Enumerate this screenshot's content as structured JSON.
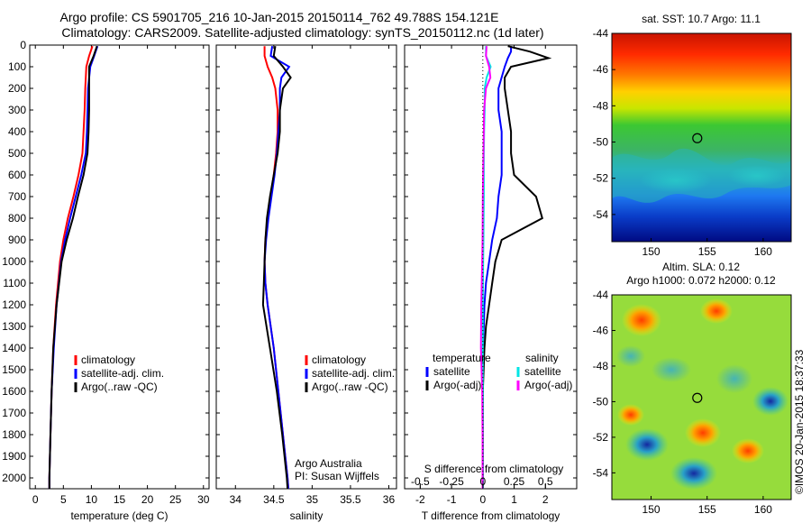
{
  "header": {
    "line1": "Argo profile: CS 5901705_216 10-Jan-2015 20150114_762 49.788S 154.121E",
    "line2": "Climatology: CARS2009. Satellite-adjusted climatology: synTS_20150112.nc (1d later)"
  },
  "colors": {
    "climatology": "#ff0000",
    "satellite": "#0000ff",
    "argo": "#000000",
    "satellite_salinity": "#00e5e5",
    "argo_salinity": "#ff00ff"
  },
  "chart_data": [
    {
      "type": "line",
      "name": "temperature-profile",
      "xlabel": "temperature (deg C)",
      "xlim": [
        -1,
        31
      ],
      "xticks": [
        0,
        5,
        10,
        15,
        20,
        25,
        30
      ],
      "ylim": [
        0,
        2050
      ],
      "yticks": [
        0,
        100,
        200,
        300,
        400,
        500,
        600,
        700,
        800,
        900,
        1000,
        1100,
        1200,
        1300,
        1400,
        1500,
        1600,
        1700,
        1800,
        1900,
        2000
      ],
      "legend": [
        "climatology",
        "satellite-adj. clim.",
        "Argo(..raw -QC)"
      ],
      "series": [
        {
          "name": "climatology",
          "color": "#ff0000",
          "depth": [
            5,
            50,
            100,
            200,
            300,
            400,
            500,
            600,
            700,
            800,
            900,
            1000,
            1200,
            1400,
            1600,
            1800,
            2000,
            2050
          ],
          "values": [
            10.2,
            9.6,
            9.1,
            8.9,
            8.8,
            8.6,
            8.4,
            7.7,
            6.8,
            5.8,
            5.0,
            4.4,
            3.7,
            3.2,
            2.9,
            2.7,
            2.5,
            2.5
          ]
        },
        {
          "name": "satellite-adj. clim.",
          "color": "#0000ff",
          "depth": [
            5,
            50,
            100,
            200,
            300,
            400,
            500,
            600,
            700,
            800,
            900,
            1000,
            1200,
            1400,
            1600,
            1800,
            2000,
            2050
          ],
          "values": [
            11.1,
            10.5,
            9.8,
            9.4,
            9.3,
            9.2,
            9.0,
            8.2,
            7.2,
            6.2,
            5.3,
            4.6,
            3.8,
            3.3,
            2.9,
            2.7,
            2.5,
            2.5
          ]
        },
        {
          "name": "Argo(..raw -QC)",
          "color": "#000000",
          "depth": [
            5,
            50,
            100,
            200,
            300,
            400,
            500,
            600,
            700,
            800,
            900,
            1000,
            1200,
            1400,
            1600,
            1800,
            2000,
            2050
          ],
          "values": [
            11.0,
            10.4,
            9.6,
            9.6,
            9.6,
            9.5,
            9.3,
            8.6,
            7.6,
            6.7,
            5.6,
            4.7,
            3.8,
            3.2,
            2.9,
            2.7,
            2.5,
            2.5
          ]
        }
      ]
    },
    {
      "type": "line",
      "name": "salinity-profile",
      "xlabel": "salinity",
      "xlim": [
        33.75,
        36.1
      ],
      "xticks": [
        34,
        34.5,
        35,
        35.5,
        36
      ],
      "ylim": [
        0,
        2050
      ],
      "legend": [
        "climatology",
        "satellite-adj. clim.",
        "Argo(..raw -QC)"
      ],
      "annotations": [
        "Argo Australia",
        "PI: Susan Wijffels"
      ],
      "series": [
        {
          "name": "climatology",
          "color": "#ff0000",
          "depth": [
            5,
            50,
            100,
            150,
            200,
            300,
            400,
            500,
            600,
            700,
            800,
            900,
            1000,
            1100,
            1200,
            1400,
            1600,
            1800,
            2000,
            2050
          ],
          "values": [
            34.38,
            34.38,
            34.42,
            34.48,
            34.52,
            34.55,
            34.55,
            34.53,
            34.5,
            34.46,
            34.42,
            34.39,
            34.38,
            34.39,
            34.42,
            34.5,
            34.56,
            34.62,
            34.68,
            34.69
          ]
        },
        {
          "name": "satellite-adj. clim.",
          "color": "#0000ff",
          "depth": [
            5,
            50,
            100,
            150,
            200,
            300,
            400,
            500,
            600,
            700,
            800,
            900,
            1000,
            1100,
            1200,
            1400,
            1600,
            1800,
            2000,
            2050
          ],
          "values": [
            34.48,
            34.46,
            34.7,
            34.6,
            34.58,
            34.58,
            34.56,
            34.54,
            34.51,
            34.47,
            34.43,
            34.4,
            34.38,
            34.39,
            34.42,
            34.5,
            34.56,
            34.62,
            34.68,
            34.69
          ]
        },
        {
          "name": "Argo(..raw -QC)",
          "color": "#000000",
          "depth": [
            5,
            50,
            100,
            150,
            200,
            300,
            400,
            500,
            600,
            700,
            800,
            900,
            1000,
            1100,
            1200,
            1400,
            1600,
            1800,
            2000,
            2050
          ],
          "values": [
            34.52,
            34.5,
            34.62,
            34.72,
            34.62,
            34.58,
            34.58,
            34.55,
            34.5,
            34.45,
            34.41,
            34.39,
            34.38,
            34.37,
            34.36,
            34.45,
            34.54,
            34.61,
            34.67,
            34.68
          ]
        }
      ]
    },
    {
      "type": "line",
      "name": "difference-profile",
      "xlabel": "T difference from climatology",
      "xlabel_top": "S difference from climatology",
      "xlim": [
        -2.5,
        3
      ],
      "xticks": [
        -2,
        -1,
        0,
        1,
        2
      ],
      "sticks_values": [
        -0.5,
        -0.25,
        0,
        0.25,
        0.5
      ],
      "sticks_labels": [
        "-0.5",
        "-0.25",
        "0",
        "0.25",
        "0.5"
      ],
      "ylim": [
        0,
        2050
      ],
      "legend_headers": [
        "temperature",
        "salinity"
      ],
      "legend": [
        "satellite",
        "Argo(-adj)",
        "satellite",
        "Argo(-adj)"
      ],
      "series": [
        {
          "name": "temperature satellite",
          "color": "#0000ff",
          "depth": [
            5,
            30,
            60,
            100,
            200,
            300,
            400,
            500,
            600,
            700,
            800,
            900,
            1000,
            1100,
            1200,
            1300,
            1400,
            1600,
            1800,
            2050
          ],
          "values": [
            0.9,
            0.9,
            0.8,
            0.7,
            0.5,
            0.5,
            0.6,
            0.6,
            0.6,
            0.5,
            0.45,
            0.3,
            0.2,
            0.1,
            0.05,
            0.03,
            0.0,
            0.0,
            0.0,
            0.0
          ]
        },
        {
          "name": "temperature Argo(-adj)",
          "color": "#000000",
          "depth": [
            5,
            30,
            60,
            100,
            150,
            200,
            300,
            400,
            500,
            600,
            700,
            800,
            900,
            1000,
            1100,
            1200,
            1300,
            1400,
            1600,
            1800,
            2050
          ],
          "values": [
            0.8,
            1.5,
            2.1,
            0.9,
            0.7,
            0.7,
            0.8,
            0.9,
            0.9,
            1.0,
            1.7,
            1.9,
            0.6,
            0.4,
            0.3,
            0.2,
            0.1,
            0.05,
            0.0,
            0.0,
            0.0
          ]
        },
        {
          "name": "salinity satellite",
          "color": "#00e5e5",
          "depth": [
            5,
            50,
            100,
            150,
            200,
            300,
            400,
            500,
            700,
            900,
            1000,
            1200,
            1400,
            1600,
            1800,
            2050
          ],
          "values": [
            0.1,
            0.1,
            0.25,
            0.12,
            0.06,
            0.06,
            0.04,
            0.03,
            0.03,
            0.02,
            0.01,
            0.0,
            0.0,
            0.0,
            0.0,
            0.0
          ]
        },
        {
          "name": "salinity Argo(-adj)",
          "color": "#ff00ff",
          "depth": [
            5,
            50,
            100,
            150,
            200,
            300,
            400,
            500,
            700,
            900,
            1000,
            1200,
            1400,
            1600,
            1800,
            2050
          ],
          "values": [
            0.12,
            0.1,
            0.2,
            0.24,
            0.1,
            0.04,
            0.03,
            0.02,
            0.0,
            -0.01,
            -0.02,
            -0.05,
            -0.06,
            -0.02,
            -0.01,
            -0.01
          ]
        }
      ]
    },
    {
      "type": "heatmap",
      "name": "sst-map",
      "title": "sat. SST: 10.7  Argo: 11.1",
      "xlim": [
        146.5,
        162.5
      ],
      "xticks": [
        150,
        155,
        160
      ],
      "ylim": [
        -55.5,
        -44
      ],
      "yticks": [
        -44,
        -46,
        -48,
        -50,
        -52,
        -54
      ],
      "marker": {
        "lon": 154.121,
        "lat": -49.788
      }
    },
    {
      "type": "heatmap",
      "name": "sla-map",
      "title": "Altim. SLA: 0.12",
      "subtitle": "Argo h1000: 0.072  h2000: 0.12",
      "xlim": [
        146.5,
        162.5
      ],
      "xticks": [
        150,
        155,
        160
      ],
      "ylim": [
        -55.5,
        -44
      ],
      "yticks": [
        -44,
        -46,
        -48,
        -50,
        -52,
        -54
      ],
      "marker": {
        "lon": 154.121,
        "lat": -49.788
      }
    }
  ],
  "credit": "©IMOS 20-Jan-2015 18:37:33"
}
